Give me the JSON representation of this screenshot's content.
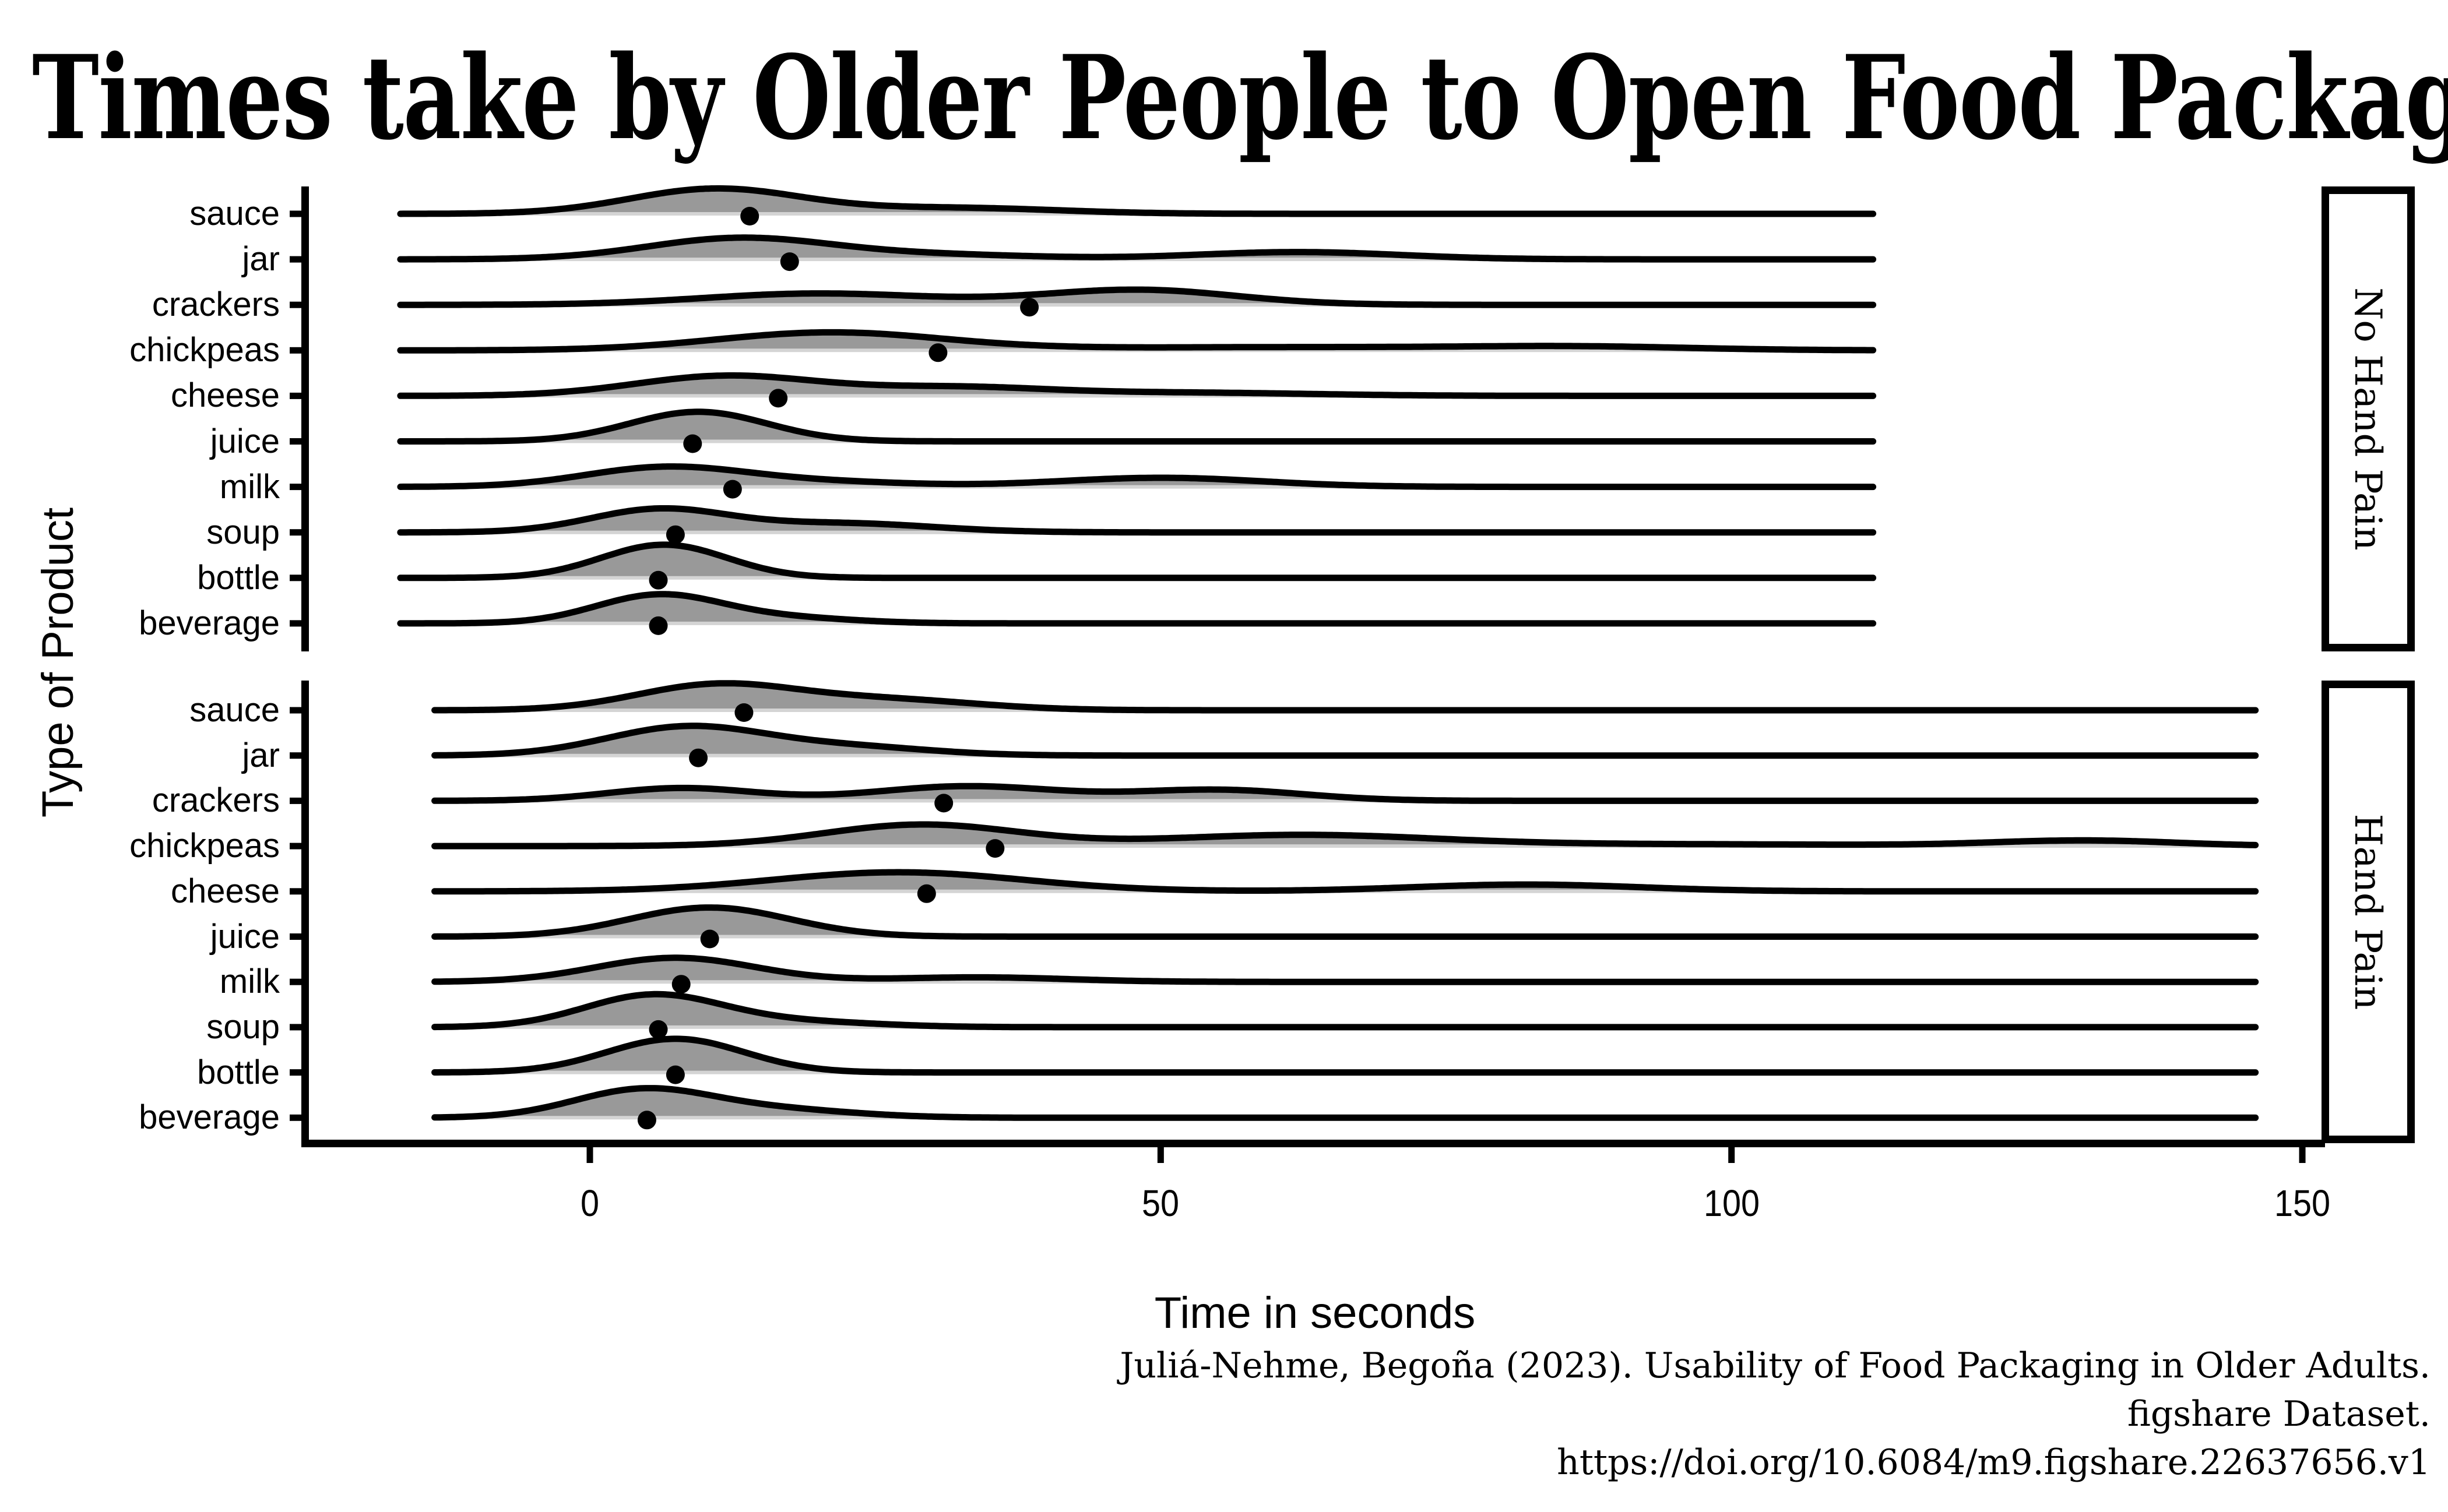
{
  "chart_data": {
    "type": "ridgeline",
    "title": "Times take by Older People to Open Food Packages",
    "xlabel": "Time in seconds",
    "ylabel": "Type of Product",
    "x_ticks": [
      "0",
      "50",
      "100",
      "150"
    ],
    "x_tick_values": [
      0,
      50,
      100,
      150
    ],
    "xlim": [
      -24.6,
      151.7
    ],
    "grid": "off",
    "legend": "none",
    "fill_color": "#999999",
    "line_color": "#000000",
    "baseline_highlight_color": "#d4d4d4",
    "point_marker": "black dot = mean time per product",
    "facets": [
      {
        "label": "No Hand Pain",
        "x_start": -16.6,
        "x_end": 112.5,
        "rows": [
          {
            "label": "sauce",
            "mean": 14,
            "bumps": [
              [
                11,
                7.5,
                0.55
              ],
              [
                32,
                9,
                0.13
              ]
            ]
          },
          {
            "label": "jar",
            "mean": 17.5,
            "bumps": [
              [
                13,
                8,
                0.46
              ],
              [
                30,
                9,
                0.1
              ],
              [
                62,
                9,
                0.16
              ]
            ]
          },
          {
            "label": "crackers",
            "mean": 38.5,
            "bumps": [
              [
                20,
                10,
                0.25
              ],
              [
                48,
                8.5,
                0.33
              ]
            ]
          },
          {
            "label": "chickpeas",
            "mean": 30.5,
            "bumps": [
              [
                21,
                10,
                0.39
              ],
              [
                60,
                18,
                0.07
              ],
              [
                87,
                10,
                0.07
              ]
            ]
          },
          {
            "label": "cheese",
            "mean": 16.5,
            "bumps": [
              [
                12,
                8,
                0.44
              ],
              [
                32,
                8,
                0.18
              ],
              [
                52,
                11,
                0.07
              ]
            ]
          },
          {
            "label": "juice",
            "mean": 9,
            "bumps": [
              [
                9.5,
                6,
                0.65
              ]
            ]
          },
          {
            "label": "milk",
            "mean": 12.5,
            "bumps": [
              [
                6.5,
                7,
                0.42
              ],
              [
                20,
                8,
                0.11
              ],
              [
                50,
                9,
                0.2
              ]
            ]
          },
          {
            "label": "soup",
            "mean": 7.5,
            "bumps": [
              [
                6,
                6,
                0.5
              ],
              [
                22,
                8,
                0.2
              ]
            ]
          },
          {
            "label": "bottle",
            "mean": 6,
            "bumps": [
              [
                6.5,
                5.5,
                0.73
              ]
            ]
          },
          {
            "label": "beverage",
            "mean": 6,
            "bumps": [
              [
                6,
                5.5,
                0.62
              ],
              [
                17,
                6,
                0.12
              ]
            ]
          }
        ]
      },
      {
        "label": "Hand Pain",
        "x_start": -13.6,
        "x_end": 146,
        "rows": [
          {
            "label": "sauce",
            "mean": 13.5,
            "bumps": [
              [
                11,
                7,
                0.55
              ],
              [
                26,
                8,
                0.23
              ]
            ]
          },
          {
            "label": "jar",
            "mean": 9.5,
            "bumps": [
              [
                8.5,
                7,
                0.63
              ],
              [
                23,
                7,
                0.18
              ]
            ]
          },
          {
            "label": "crackers",
            "mean": 31,
            "bumps": [
              [
                8,
                6.5,
                0.28
              ],
              [
                33,
                8,
                0.32
              ],
              [
                55,
                7.5,
                0.24
              ]
            ]
          },
          {
            "label": "chickpeas",
            "mean": 35.5,
            "bumps": [
              [
                29,
                8.5,
                0.47
              ],
              [
                62,
                12,
                0.24
              ],
              [
                95,
                18,
                0.04
              ],
              [
                131,
                8,
                0.12
              ]
            ]
          },
          {
            "label": "cheese",
            "mean": 29.5,
            "bumps": [
              [
                27,
                11,
                0.42
              ],
              [
                82,
                10,
                0.15
              ]
            ]
          },
          {
            "label": "juice",
            "mean": 10.5,
            "bumps": [
              [
                10.5,
                7,
                0.64
              ]
            ]
          },
          {
            "label": "milk",
            "mean": 8,
            "bumps": [
              [
                7.5,
                7,
                0.53
              ],
              [
                34,
                8,
                0.1
              ]
            ]
          },
          {
            "label": "soup",
            "mean": 6,
            "bumps": [
              [
                5.5,
                6,
                0.7
              ],
              [
                18,
                7,
                0.12
              ]
            ]
          },
          {
            "label": "bottle",
            "mean": 7.5,
            "bumps": [
              [
                7.5,
                6,
                0.74
              ]
            ]
          },
          {
            "label": "beverage",
            "mean": 5,
            "bumps": [
              [
                4.5,
                6,
                0.6
              ],
              [
                16,
                7,
                0.18
              ]
            ]
          }
        ]
      }
    ],
    "caption_lines": [
      "Juliá-Nehme, Begoña (2023). Usability of Food Packaging in Older Adults.",
      "figshare Dataset.",
      "https://doi.org/10.6084/m9.figshare.22637656.v1"
    ]
  }
}
